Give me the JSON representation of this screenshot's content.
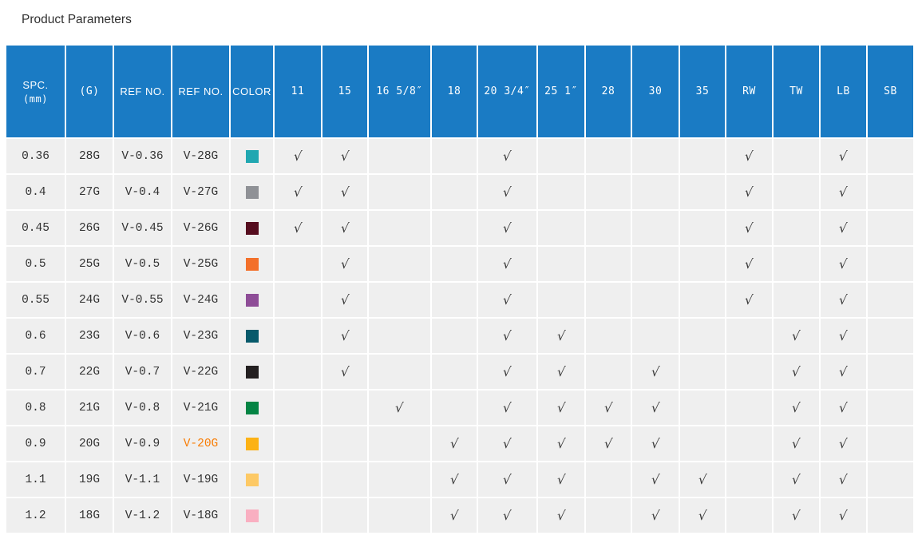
{
  "title": "Product Parameters",
  "colors": {
    "header_bg": "#1A7BC4",
    "header_text": "#FFFFFF",
    "body_cell_bg": "#EFEFEF",
    "text": "#333333",
    "check": "#3A3A3A",
    "ref_highlight": "#F87D05",
    "page_bg": "#FFFFFF"
  },
  "table": {
    "check_glyph": "√",
    "headers": [
      {
        "key": "spc",
        "label": "SPC.",
        "sub": "(mm)"
      },
      {
        "key": "g",
        "label": "(G)"
      },
      {
        "key": "ref-no-1",
        "label": "REF NO."
      },
      {
        "key": "ref-no-2",
        "label": "REF NO."
      },
      {
        "key": "color",
        "label": "COLOR"
      },
      {
        "key": "11",
        "label": "11"
      },
      {
        "key": "15",
        "label": "15"
      },
      {
        "key": "16-5-8",
        "label": "16 5/8″"
      },
      {
        "key": "18",
        "label": "18"
      },
      {
        "key": "20-3-4",
        "label": "20 3/4″"
      },
      {
        "key": "25-1",
        "label": "25 1″"
      },
      {
        "key": "28",
        "label": "28"
      },
      {
        "key": "30",
        "label": "30"
      },
      {
        "key": "35",
        "label": "35"
      },
      {
        "key": "rw",
        "label": "RW"
      },
      {
        "key": "tw",
        "label": "TW"
      },
      {
        "key": "lb",
        "label": "LB"
      },
      {
        "key": "sb",
        "label": "SB"
      }
    ],
    "size_keys": [
      "11",
      "15",
      "16-5-8",
      "18",
      "20-3-4",
      "25-1",
      "28",
      "30",
      "35",
      "rw",
      "tw",
      "lb",
      "sb"
    ],
    "rows": [
      {
        "spc": "0.36",
        "g": "28G",
        "ref1": "V-0.36",
        "ref2": "V-28G",
        "ref2_highlight": false,
        "swatch": "#21A7B1",
        "checks": [
          "11",
          "15",
          "20-3-4",
          "rw",
          "lb"
        ]
      },
      {
        "spc": "0.4",
        "g": "27G",
        "ref1": "V-0.4",
        "ref2": "V-27G",
        "ref2_highlight": false,
        "swatch": "#8F9196",
        "checks": [
          "11",
          "15",
          "20-3-4",
          "rw",
          "lb"
        ]
      },
      {
        "spc": "0.45",
        "g": "26G",
        "ref1": "V-0.45",
        "ref2": "V-26G",
        "ref2_highlight": false,
        "swatch": "#560D1F",
        "checks": [
          "11",
          "15",
          "20-3-4",
          "rw",
          "lb"
        ]
      },
      {
        "spc": "0.5",
        "g": "25G",
        "ref1": "V-0.5",
        "ref2": "V-25G",
        "ref2_highlight": false,
        "swatch": "#F3702A",
        "checks": [
          "15",
          "20-3-4",
          "rw",
          "lb"
        ]
      },
      {
        "spc": "0.55",
        "g": "24G",
        "ref1": "V-0.55",
        "ref2": "V-24G",
        "ref2_highlight": false,
        "swatch": "#8E4D97",
        "checks": [
          "15",
          "20-3-4",
          "rw",
          "lb"
        ]
      },
      {
        "spc": "0.6",
        "g": "23G",
        "ref1": "V-0.6",
        "ref2": "V-23G",
        "ref2_highlight": false,
        "swatch": "#075A6B",
        "checks": [
          "15",
          "20-3-4",
          "25-1",
          "tw",
          "lb"
        ]
      },
      {
        "spc": "0.7",
        "g": "22G",
        "ref1": "V-0.7",
        "ref2": "V-22G",
        "ref2_highlight": false,
        "swatch": "#231F20",
        "checks": [
          "15",
          "20-3-4",
          "25-1",
          "30",
          "tw",
          "lb"
        ]
      },
      {
        "spc": "0.8",
        "g": "21G",
        "ref1": "V-0.8",
        "ref2": "V-21G",
        "ref2_highlight": false,
        "swatch": "#048444",
        "checks": [
          "16-5-8",
          "20-3-4",
          "25-1",
          "28",
          "30",
          "tw",
          "lb"
        ]
      },
      {
        "spc": "0.9",
        "g": "20G",
        "ref1": "V-0.9",
        "ref2": "V-20G",
        "ref2_highlight": true,
        "swatch": "#FCB215",
        "checks": [
          "18",
          "20-3-4",
          "25-1",
          "28",
          "30",
          "tw",
          "lb"
        ]
      },
      {
        "spc": "1.1",
        "g": "19G",
        "ref1": "V-1.1",
        "ref2": "V-19G",
        "ref2_highlight": false,
        "swatch": "#FDC965",
        "checks": [
          "18",
          "20-3-4",
          "25-1",
          "30",
          "35",
          "tw",
          "lb"
        ]
      },
      {
        "spc": "1.2",
        "g": "18G",
        "ref1": "V-1.2",
        "ref2": "V-18G",
        "ref2_highlight": false,
        "swatch": "#F9AFC1",
        "checks": [
          "18",
          "20-3-4",
          "25-1",
          "30",
          "35",
          "tw",
          "lb"
        ]
      }
    ]
  }
}
